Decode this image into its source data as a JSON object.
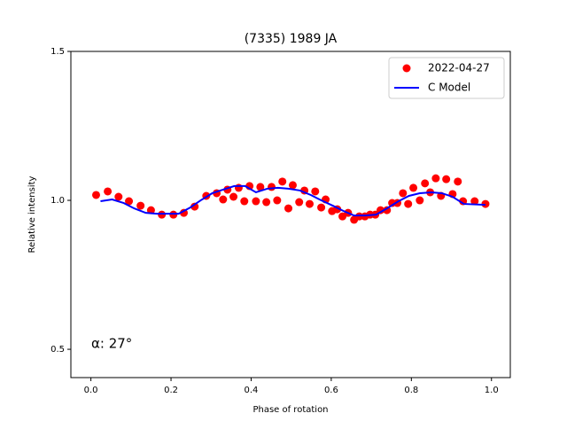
{
  "chart_data": {
    "type": "scatter-line",
    "title": "(7335) 1989 JA",
    "xlabel": "Phase of rotation",
    "ylabel": "Relative intensity",
    "annotation": "α: 27°",
    "xlim": [
      -0.05,
      1.047
    ],
    "ylim": [
      0.405,
      1.5
    ],
    "xticks": [
      {
        "value": 0,
        "label": "0.0"
      },
      0.2,
      0.4,
      0.6,
      0.8,
      {
        "value": 1,
        "label": "1.0"
      }
    ],
    "yticks": [
      0.5,
      {
        "value": 1,
        "label": "1.0"
      },
      1.5
    ],
    "legend": "upper right",
    "series": [
      {
        "name": "2022-04-27",
        "color": "#ff0000",
        "mode": "markers",
        "x": [
          0.013,
          0.042,
          0.069,
          0.095,
          0.124,
          0.15,
          0.177,
          0.206,
          0.232,
          0.259,
          0.288,
          0.314,
          0.33,
          0.341,
          0.356,
          0.369,
          0.383,
          0.396,
          0.412,
          0.423,
          0.438,
          0.451,
          0.465,
          0.478,
          0.493,
          0.504,
          0.52,
          0.533,
          0.546,
          0.56,
          0.575,
          0.586,
          0.602,
          0.615,
          0.628,
          0.642,
          0.657,
          0.67,
          0.684,
          0.697,
          0.71,
          0.723,
          0.739,
          0.752,
          0.765,
          0.779,
          0.792,
          0.805,
          0.821,
          0.834,
          0.847,
          0.861,
          0.874,
          0.887,
          0.903,
          0.916,
          0.929,
          0.958,
          0.985
        ],
        "values": [
          1.018,
          1.03,
          1.012,
          0.997,
          0.982,
          0.967,
          0.952,
          0.952,
          0.958,
          0.979,
          1.015,
          1.024,
          1.003,
          1.036,
          1.012,
          1.042,
          0.997,
          1.048,
          0.997,
          1.045,
          0.994,
          1.045,
          1.0,
          1.063,
          0.973,
          1.051,
          0.994,
          1.033,
          0.988,
          1.03,
          0.976,
          1.003,
          0.964,
          0.97,
          0.946,
          0.958,
          0.935,
          0.946,
          0.946,
          0.952,
          0.952,
          0.967,
          0.967,
          0.991,
          0.991,
          1.024,
          0.988,
          1.042,
          1.0,
          1.057,
          1.027,
          1.074,
          1.015,
          1.071,
          1.021,
          1.063,
          0.997,
          0.997,
          0.988
        ]
      },
      {
        "name": "C Model",
        "color": "#0000ff",
        "mode": "line",
        "x": [
          0.024,
          0.053,
          0.082,
          0.108,
          0.137,
          0.164,
          0.192,
          0.219,
          0.248,
          0.274,
          0.303,
          0.33,
          0.358,
          0.385,
          0.412,
          0.44,
          0.467,
          0.493,
          0.522,
          0.549,
          0.575,
          0.604,
          0.631,
          0.657,
          0.686,
          0.712,
          0.739,
          0.768,
          0.794,
          0.821,
          0.85,
          0.876,
          0.903,
          0.931,
          0.985
        ],
        "values": [
          0.997,
          1.003,
          0.991,
          0.973,
          0.958,
          0.955,
          0.955,
          0.955,
          0.976,
          1.0,
          1.024,
          1.036,
          1.048,
          1.048,
          1.027,
          1.039,
          1.042,
          1.039,
          1.033,
          1.018,
          1.0,
          0.982,
          0.964,
          0.949,
          0.949,
          0.952,
          0.973,
          0.997,
          1.015,
          1.024,
          1.027,
          1.024,
          1.012,
          0.988,
          0.985
        ]
      }
    ]
  }
}
